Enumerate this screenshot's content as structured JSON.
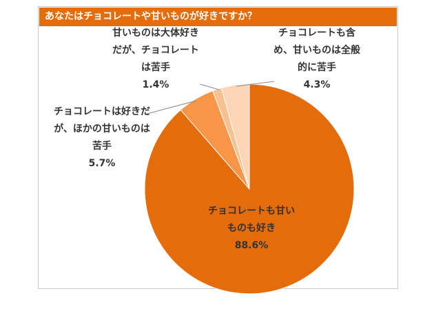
{
  "chart_data": {
    "type": "pie",
    "title": "あなたはチョコレートや甘いものが好きですか？",
    "categories": [
      "チョコレートも甘いものも好き",
      "チョコレートは好きだが、ほかの甘いものは苦手",
      "甘いものは大体好きだが、チョコレートは苦手",
      "チョコレートも含め、甘いものは全般的に苦手"
    ],
    "values": [
      88.6,
      5.7,
      1.4,
      4.3
    ],
    "value_labels": [
      "88.6%",
      "5.7%",
      "1.4%",
      "4.3%"
    ],
    "colors": [
      "#e46c0a",
      "#f79646",
      "#fac090",
      "#fcd5b5"
    ]
  }
}
